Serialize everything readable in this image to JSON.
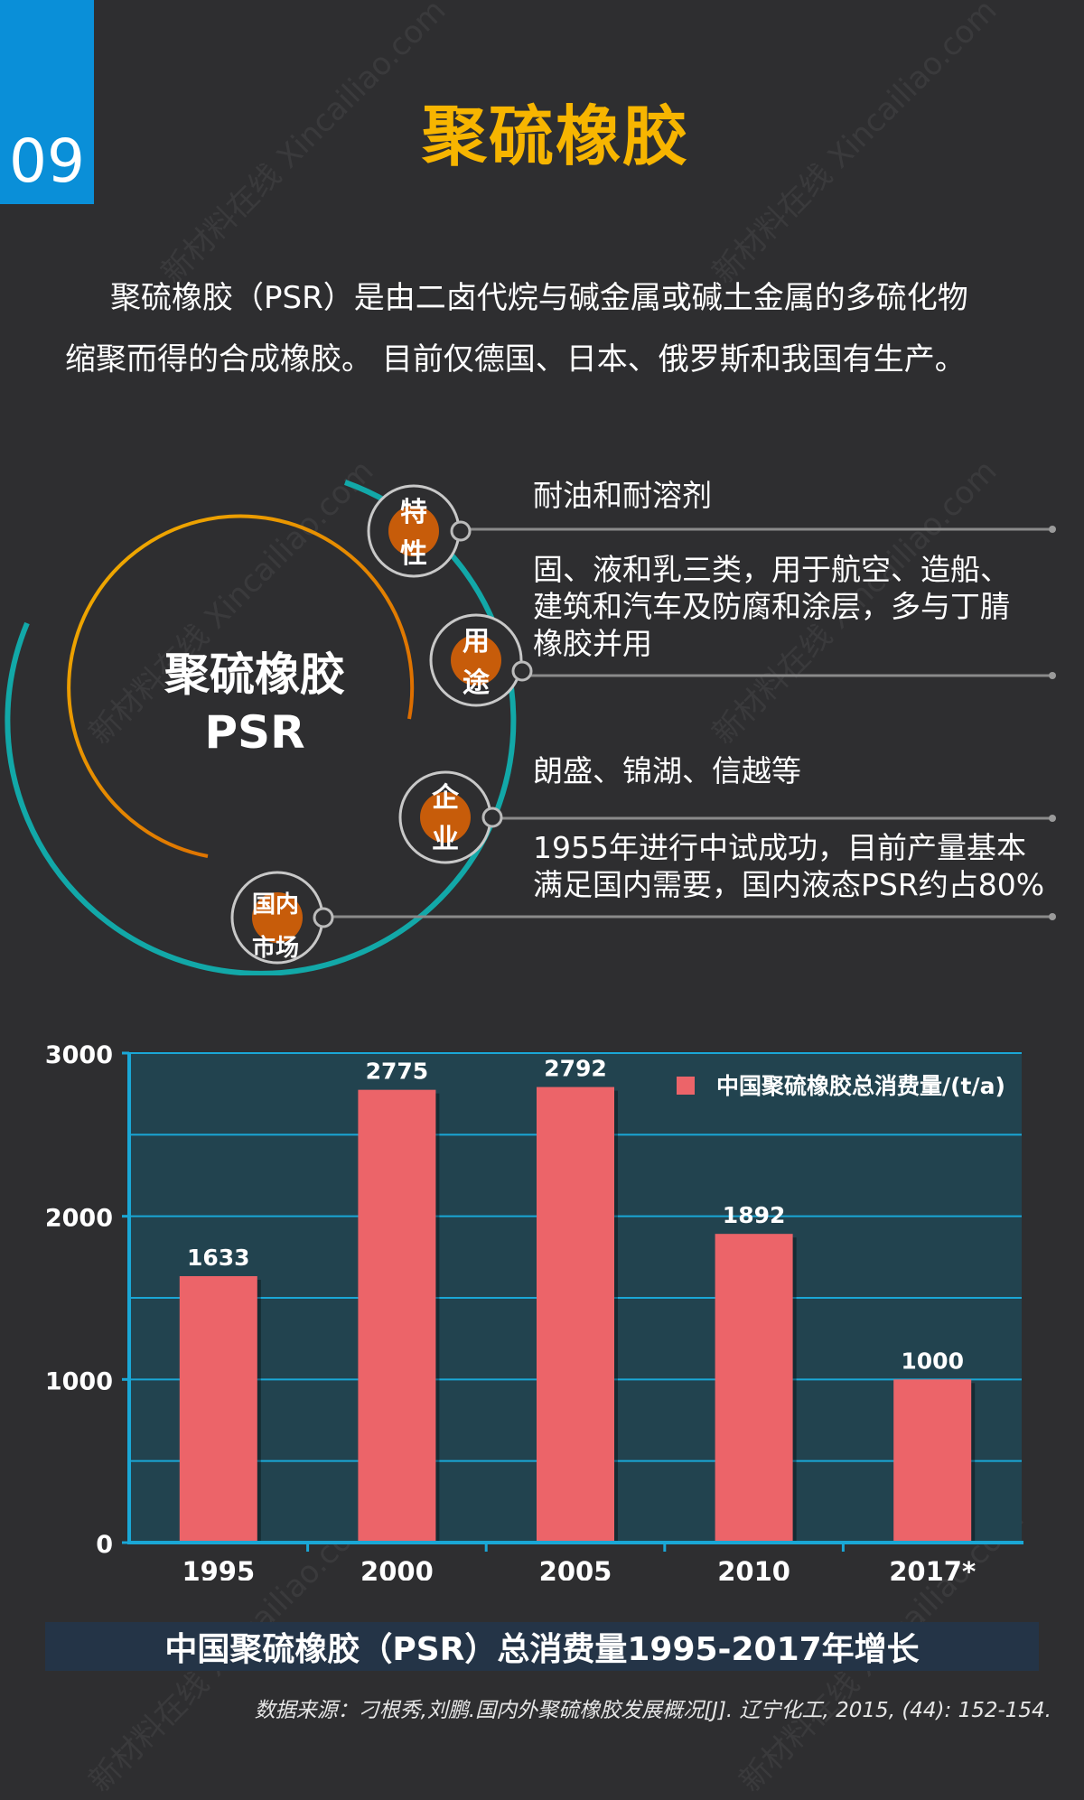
{
  "page_number": "09",
  "title": "聚硫橡胶",
  "intro": {
    "line1": "聚硫橡胶（PSR）是由二卤代烷与碱金属或碱土金属的多硫化物",
    "line2": "缩聚而得的合成橡胶。  目前仅德国、日本、俄罗斯和我国有生产。"
  },
  "diagram": {
    "center_line1": "聚硫橡胶",
    "center_line2": "PSR",
    "nodes": [
      {
        "label_1": "特",
        "label_2": "性",
        "text": "耐油和耐溶剂"
      },
      {
        "label_1": "用",
        "label_2": "途",
        "text_1": "固、液和乳三类，用于航空、造船、",
        "text_2": "建筑和汽车及防腐和涂层，多与丁腈",
        "text_3": "橡胶并用"
      },
      {
        "label_1": "企",
        "label_2": "业",
        "text": "朗盛、锦湖、信越等"
      },
      {
        "label_1": "国内",
        "label_2": "市场",
        "text_1": "1955年进行中试成功，目前产量基本",
        "text_2": "满足国内需要，国内液态PSR约占80%"
      }
    ],
    "colors": {
      "teal": "#12a8a8",
      "orange": "#e67e00",
      "gold": "#f2b300",
      "node_fill": "#c75c0a"
    }
  },
  "chart_data": {
    "type": "bar",
    "categories": [
      "1995",
      "2000",
      "2005",
      "2010",
      "2017*"
    ],
    "series": [
      {
        "name": "中国聚硫橡胶总消费量/(t/a)",
        "values": [
          1633,
          2775,
          2792,
          1892,
          1000
        ]
      }
    ],
    "y_ticks": [
      "0",
      "1000",
      "2000",
      "3000"
    ],
    "ylim": [
      0,
      3000
    ],
    "grid": true,
    "legend_position": "top-right",
    "colors": {
      "bar": "#ec6469",
      "plot_bg": "#22434f",
      "grid": "#1aa7d6",
      "axis": "#1aa7d6"
    }
  },
  "chart_caption": "中国聚硫橡胶（PSR）总消费量1995-2017年增长",
  "source": "数据来源：刁根秀,刘鹏.国内外聚硫橡胶发展概况[J]. 辽宁化工, 2015, (44): 152-154.",
  "watermark_text": "新材料在线 Xincailiao.com"
}
